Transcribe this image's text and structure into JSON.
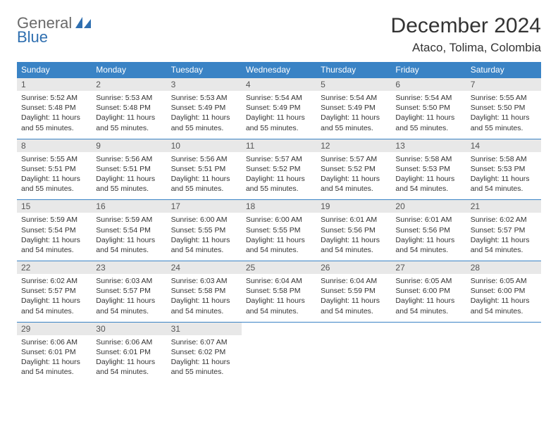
{
  "logo": {
    "general": "General",
    "blue": "Blue"
  },
  "title": "December 2024",
  "location": "Ataco, Tolima, Colombia",
  "day_headers": [
    "Sunday",
    "Monday",
    "Tuesday",
    "Wednesday",
    "Thursday",
    "Friday",
    "Saturday"
  ],
  "colors": {
    "header_bg": "#3a83c5",
    "header_text": "#ffffff",
    "daynum_bg": "#e8e8e8",
    "border": "#3a83c5",
    "logo_general": "#6a6a6a",
    "logo_blue": "#2f6fb0"
  },
  "weeks": [
    [
      {
        "n": "1",
        "sr": "Sunrise: 5:52 AM",
        "ss": "Sunset: 5:48 PM",
        "dl": "Daylight: 11 hours and 55 minutes."
      },
      {
        "n": "2",
        "sr": "Sunrise: 5:53 AM",
        "ss": "Sunset: 5:48 PM",
        "dl": "Daylight: 11 hours and 55 minutes."
      },
      {
        "n": "3",
        "sr": "Sunrise: 5:53 AM",
        "ss": "Sunset: 5:49 PM",
        "dl": "Daylight: 11 hours and 55 minutes."
      },
      {
        "n": "4",
        "sr": "Sunrise: 5:54 AM",
        "ss": "Sunset: 5:49 PM",
        "dl": "Daylight: 11 hours and 55 minutes."
      },
      {
        "n": "5",
        "sr": "Sunrise: 5:54 AM",
        "ss": "Sunset: 5:49 PM",
        "dl": "Daylight: 11 hours and 55 minutes."
      },
      {
        "n": "6",
        "sr": "Sunrise: 5:54 AM",
        "ss": "Sunset: 5:50 PM",
        "dl": "Daylight: 11 hours and 55 minutes."
      },
      {
        "n": "7",
        "sr": "Sunrise: 5:55 AM",
        "ss": "Sunset: 5:50 PM",
        "dl": "Daylight: 11 hours and 55 minutes."
      }
    ],
    [
      {
        "n": "8",
        "sr": "Sunrise: 5:55 AM",
        "ss": "Sunset: 5:51 PM",
        "dl": "Daylight: 11 hours and 55 minutes."
      },
      {
        "n": "9",
        "sr": "Sunrise: 5:56 AM",
        "ss": "Sunset: 5:51 PM",
        "dl": "Daylight: 11 hours and 55 minutes."
      },
      {
        "n": "10",
        "sr": "Sunrise: 5:56 AM",
        "ss": "Sunset: 5:51 PM",
        "dl": "Daylight: 11 hours and 55 minutes."
      },
      {
        "n": "11",
        "sr": "Sunrise: 5:57 AM",
        "ss": "Sunset: 5:52 PM",
        "dl": "Daylight: 11 hours and 55 minutes."
      },
      {
        "n": "12",
        "sr": "Sunrise: 5:57 AM",
        "ss": "Sunset: 5:52 PM",
        "dl": "Daylight: 11 hours and 54 minutes."
      },
      {
        "n": "13",
        "sr": "Sunrise: 5:58 AM",
        "ss": "Sunset: 5:53 PM",
        "dl": "Daylight: 11 hours and 54 minutes."
      },
      {
        "n": "14",
        "sr": "Sunrise: 5:58 AM",
        "ss": "Sunset: 5:53 PM",
        "dl": "Daylight: 11 hours and 54 minutes."
      }
    ],
    [
      {
        "n": "15",
        "sr": "Sunrise: 5:59 AM",
        "ss": "Sunset: 5:54 PM",
        "dl": "Daylight: 11 hours and 54 minutes."
      },
      {
        "n": "16",
        "sr": "Sunrise: 5:59 AM",
        "ss": "Sunset: 5:54 PM",
        "dl": "Daylight: 11 hours and 54 minutes."
      },
      {
        "n": "17",
        "sr": "Sunrise: 6:00 AM",
        "ss": "Sunset: 5:55 PM",
        "dl": "Daylight: 11 hours and 54 minutes."
      },
      {
        "n": "18",
        "sr": "Sunrise: 6:00 AM",
        "ss": "Sunset: 5:55 PM",
        "dl": "Daylight: 11 hours and 54 minutes."
      },
      {
        "n": "19",
        "sr": "Sunrise: 6:01 AM",
        "ss": "Sunset: 5:56 PM",
        "dl": "Daylight: 11 hours and 54 minutes."
      },
      {
        "n": "20",
        "sr": "Sunrise: 6:01 AM",
        "ss": "Sunset: 5:56 PM",
        "dl": "Daylight: 11 hours and 54 minutes."
      },
      {
        "n": "21",
        "sr": "Sunrise: 6:02 AM",
        "ss": "Sunset: 5:57 PM",
        "dl": "Daylight: 11 hours and 54 minutes."
      }
    ],
    [
      {
        "n": "22",
        "sr": "Sunrise: 6:02 AM",
        "ss": "Sunset: 5:57 PM",
        "dl": "Daylight: 11 hours and 54 minutes."
      },
      {
        "n": "23",
        "sr": "Sunrise: 6:03 AM",
        "ss": "Sunset: 5:57 PM",
        "dl": "Daylight: 11 hours and 54 minutes."
      },
      {
        "n": "24",
        "sr": "Sunrise: 6:03 AM",
        "ss": "Sunset: 5:58 PM",
        "dl": "Daylight: 11 hours and 54 minutes."
      },
      {
        "n": "25",
        "sr": "Sunrise: 6:04 AM",
        "ss": "Sunset: 5:58 PM",
        "dl": "Daylight: 11 hours and 54 minutes."
      },
      {
        "n": "26",
        "sr": "Sunrise: 6:04 AM",
        "ss": "Sunset: 5:59 PM",
        "dl": "Daylight: 11 hours and 54 minutes."
      },
      {
        "n": "27",
        "sr": "Sunrise: 6:05 AM",
        "ss": "Sunset: 6:00 PM",
        "dl": "Daylight: 11 hours and 54 minutes."
      },
      {
        "n": "28",
        "sr": "Sunrise: 6:05 AM",
        "ss": "Sunset: 6:00 PM",
        "dl": "Daylight: 11 hours and 54 minutes."
      }
    ],
    [
      {
        "n": "29",
        "sr": "Sunrise: 6:06 AM",
        "ss": "Sunset: 6:01 PM",
        "dl": "Daylight: 11 hours and 54 minutes."
      },
      {
        "n": "30",
        "sr": "Sunrise: 6:06 AM",
        "ss": "Sunset: 6:01 PM",
        "dl": "Daylight: 11 hours and 54 minutes."
      },
      {
        "n": "31",
        "sr": "Sunrise: 6:07 AM",
        "ss": "Sunset: 6:02 PM",
        "dl": "Daylight: 11 hours and 55 minutes."
      },
      null,
      null,
      null,
      null
    ]
  ]
}
